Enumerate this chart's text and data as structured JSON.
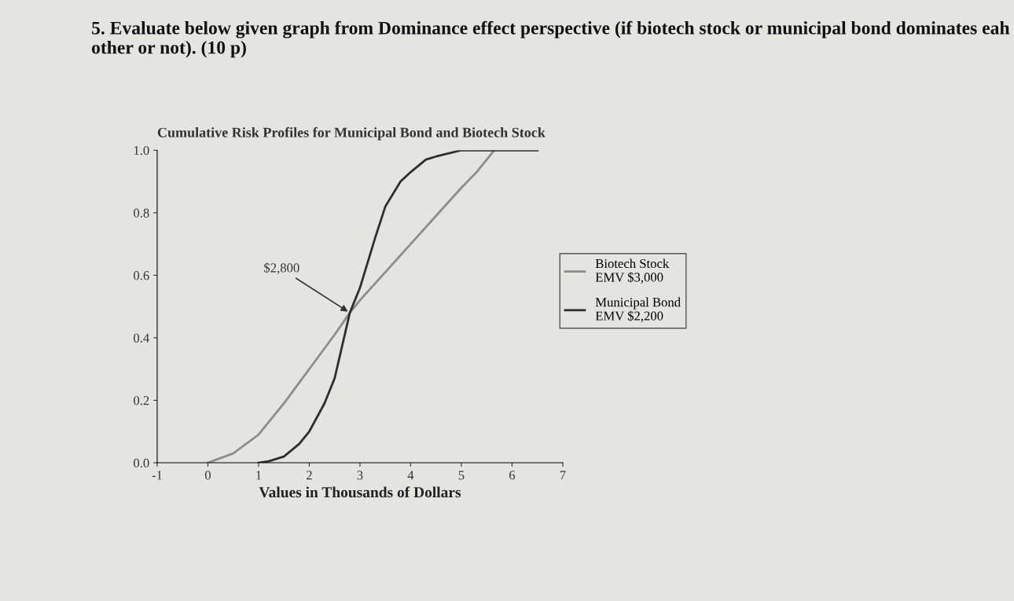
{
  "chart_data": {
    "type": "line",
    "title": "Cumulative Risk Profiles for Municipal Bond and Biotech Stock",
    "xlabel": "Values in Thousands of Dollars",
    "series": [
      {
        "name": "Biotech Stock",
        "color": "#8c8c8c",
        "x": [
          0,
          0.5,
          1,
          1.5,
          2,
          2.5,
          2.8,
          3,
          3.5,
          4,
          4.5,
          5,
          5.3,
          5.65
        ],
        "values": [
          0,
          0.03,
          0.09,
          0.19,
          0.3,
          0.41,
          0.48,
          0.52,
          0.61,
          0.7,
          0.79,
          0.88,
          0.93,
          1
        ]
      },
      {
        "name": "Municipal Bond",
        "color": "#2e2e2e",
        "x": [
          1,
          1.2,
          1.5,
          1.8,
          2,
          2.3,
          2.5,
          2.8,
          3,
          3.3,
          3.5,
          3.8,
          4,
          4.3,
          4.5,
          5,
          6.5
        ],
        "values": [
          0,
          0.005,
          0.02,
          0.06,
          0.1,
          0.19,
          0.27,
          0.48,
          0.56,
          0.72,
          0.82,
          0.9,
          0.93,
          0.97,
          0.98,
          1,
          1
        ]
      }
    ],
    "annotations": [
      "5. Evaluate below given graph from Dominance effect perspective (if biotech stock or municipal bond dominates eah other or not). (10 p)",
      {
        "text": "$2,800",
        "x": 2.8,
        "y": 0.48
      },
      "EMV $3,000",
      "EMV $2,200"
    ],
    "xlim": [
      -1,
      7
    ],
    "ylim": [
      0,
      1
    ],
    "xticks": [
      -1,
      0,
      1,
      2,
      3,
      4,
      5,
      6,
      7
    ],
    "yticks": [
      {
        "value": 0,
        "label": "0.0"
      },
      {
        "value": 0.2,
        "label": "0.2"
      },
      {
        "value": 0.4,
        "label": "0.4"
      },
      {
        "value": 0.6,
        "label": "0.6"
      },
      {
        "value": 0.8,
        "label": "0.8"
      },
      {
        "value": 1,
        "label": "1.0"
      }
    ],
    "grid": false,
    "legend": "center right",
    "line_style": "solid",
    "marker": "none"
  }
}
